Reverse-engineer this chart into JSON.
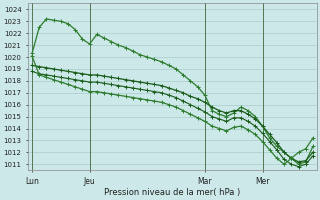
{
  "background_color": "#cce8e8",
  "grid_color": "#aacccc",
  "line_color_dark": "#1a5c1a",
  "line_color_med": "#2e7d2e",
  "ylim": [
    1010.5,
    1024.5
  ],
  "ytick_min": 1011,
  "ytick_max": 1024,
  "xlabel": "Pression niveau de la mer( hPa )",
  "xtick_labels": [
    "Lun",
    "Jeu",
    "Mar",
    "Mer"
  ],
  "xtick_positions": [
    0,
    8,
    24,
    32
  ],
  "vline_positions": [
    0,
    8,
    24,
    32
  ],
  "n_points": 40,
  "series1": [
    1020.3,
    1022.5,
    1023.2,
    1023.1,
    1023.0,
    1022.8,
    1022.3,
    1021.5,
    1021.1,
    1021.9,
    1021.6,
    1021.3,
    1021.0,
    1020.8,
    1020.5,
    1020.2,
    1020.0,
    1019.8,
    1019.6,
    1019.3,
    1019.0,
    1018.5,
    1018.0,
    1017.5,
    1016.8,
    1015.5,
    1015.2,
    1015.0,
    1015.3,
    1015.8,
    1015.5,
    1015.0,
    1014.2,
    1013.2,
    1012.5,
    1012.0,
    1011.5,
    1011.0,
    1011.2,
    1012.5
  ],
  "series2": [
    1019.3,
    1019.2,
    1019.1,
    1019.0,
    1018.9,
    1018.8,
    1018.7,
    1018.6,
    1018.5,
    1018.5,
    1018.4,
    1018.3,
    1018.2,
    1018.1,
    1018.0,
    1017.9,
    1017.8,
    1017.7,
    1017.6,
    1017.4,
    1017.2,
    1017.0,
    1016.7,
    1016.5,
    1016.2,
    1015.8,
    1015.5,
    1015.3,
    1015.5,
    1015.5,
    1015.2,
    1014.8,
    1014.2,
    1013.5,
    1012.8,
    1012.0,
    1011.5,
    1011.2,
    1011.3,
    1012.0
  ],
  "series3": [
    1018.8,
    1018.6,
    1018.5,
    1018.4,
    1018.3,
    1018.2,
    1018.1,
    1018.0,
    1017.9,
    1017.9,
    1017.8,
    1017.7,
    1017.6,
    1017.5,
    1017.4,
    1017.3,
    1017.2,
    1017.1,
    1017.0,
    1016.8,
    1016.6,
    1016.3,
    1016.0,
    1015.7,
    1015.4,
    1015.0,
    1014.8,
    1014.6,
    1014.9,
    1014.9,
    1014.6,
    1014.2,
    1013.6,
    1012.9,
    1012.2,
    1011.4,
    1011.0,
    1010.8,
    1011.0,
    1011.7
  ],
  "series4": [
    1020.1,
    1018.5,
    1018.3,
    1018.1,
    1017.9,
    1017.7,
    1017.5,
    1017.3,
    1017.1,
    1017.1,
    1017.0,
    1016.9,
    1016.8,
    1016.7,
    1016.6,
    1016.5,
    1016.4,
    1016.3,
    1016.2,
    1016.0,
    1015.8,
    1015.5,
    1015.2,
    1014.9,
    1014.6,
    1014.2,
    1014.0,
    1013.8,
    1014.1,
    1014.2,
    1013.9,
    1013.5,
    1012.9,
    1012.2,
    1011.5,
    1011.0,
    1011.5,
    1012.0,
    1012.3,
    1013.2
  ]
}
